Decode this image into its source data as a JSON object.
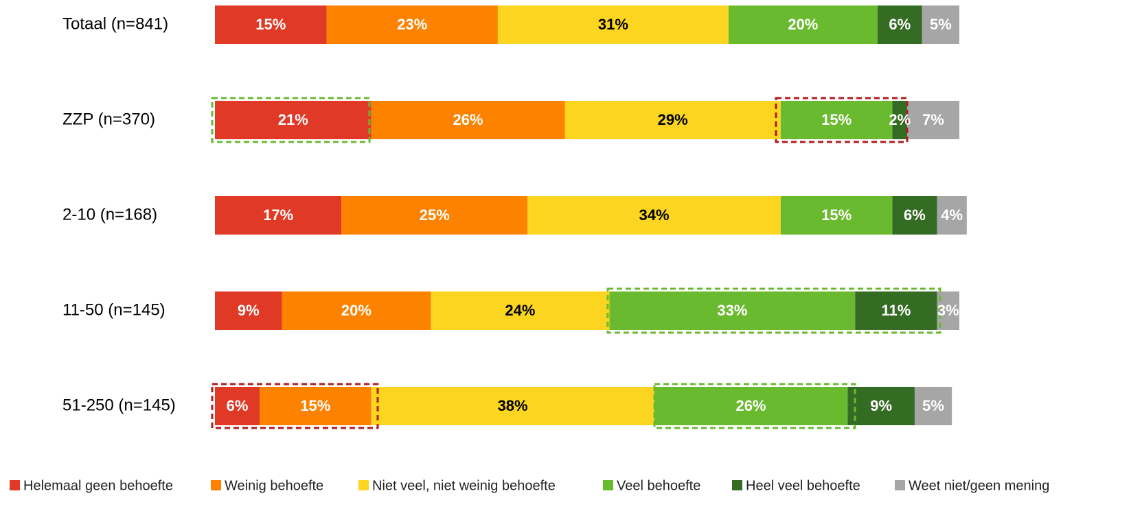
{
  "chart_data": {
    "type": "stacked-bar-horizontal",
    "categories": [
      "Totaal (n=841)",
      "ZZP (n=370)",
      "2-10 (n=168)",
      "11-50 (n=145)",
      "51-250 (n=145)"
    ],
    "xlim": [
      0,
      100
    ],
    "legend": "bottom",
    "series": [
      {
        "name": "Helemaal geen behoefte",
        "color": "#e03a27",
        "label_color": "#ffffff",
        "values": [
          15,
          21,
          17,
          9,
          6
        ],
        "value_labels": [
          "15%",
          "21%",
          "17%",
          "9%",
          "6%"
        ]
      },
      {
        "name": "Weinig behoefte",
        "color": "#fc8200",
        "label_color": "#ffffff",
        "values": [
          23,
          26,
          25,
          20,
          15
        ],
        "value_labels": [
          "23%",
          "26%",
          "25%",
          "20%",
          "15%"
        ]
      },
      {
        "name": "Niet veel, niet weinig behoefte",
        "color": "#fbd51f",
        "label_color": "#000000",
        "values": [
          31,
          29,
          34,
          24,
          38
        ],
        "value_labels": [
          "31%",
          "29%",
          "34%",
          "24%",
          "38%"
        ]
      },
      {
        "name": "Veel behoefte",
        "color": "#6aba2f",
        "label_color": "#ffffff",
        "values": [
          20,
          15,
          15,
          33,
          26
        ],
        "value_labels": [
          "20%",
          "15%",
          "15%",
          "33%",
          "26%"
        ]
      },
      {
        "name": "Heel veel behoefte",
        "color": "#356c24",
        "label_color": "#ffffff",
        "values": [
          6,
          2,
          6,
          11,
          9
        ],
        "value_labels": [
          "6%",
          "2%",
          "6%",
          "11%",
          "9%"
        ]
      },
      {
        "name": "Weet niet/geen mening",
        "color": "#a6a6a6",
        "label_color": "#ffffff",
        "values": [
          5,
          7,
          4,
          3,
          5
        ],
        "value_labels": [
          "5%",
          "7%",
          "4%",
          "3%",
          "5%"
        ]
      }
    ]
  }
}
